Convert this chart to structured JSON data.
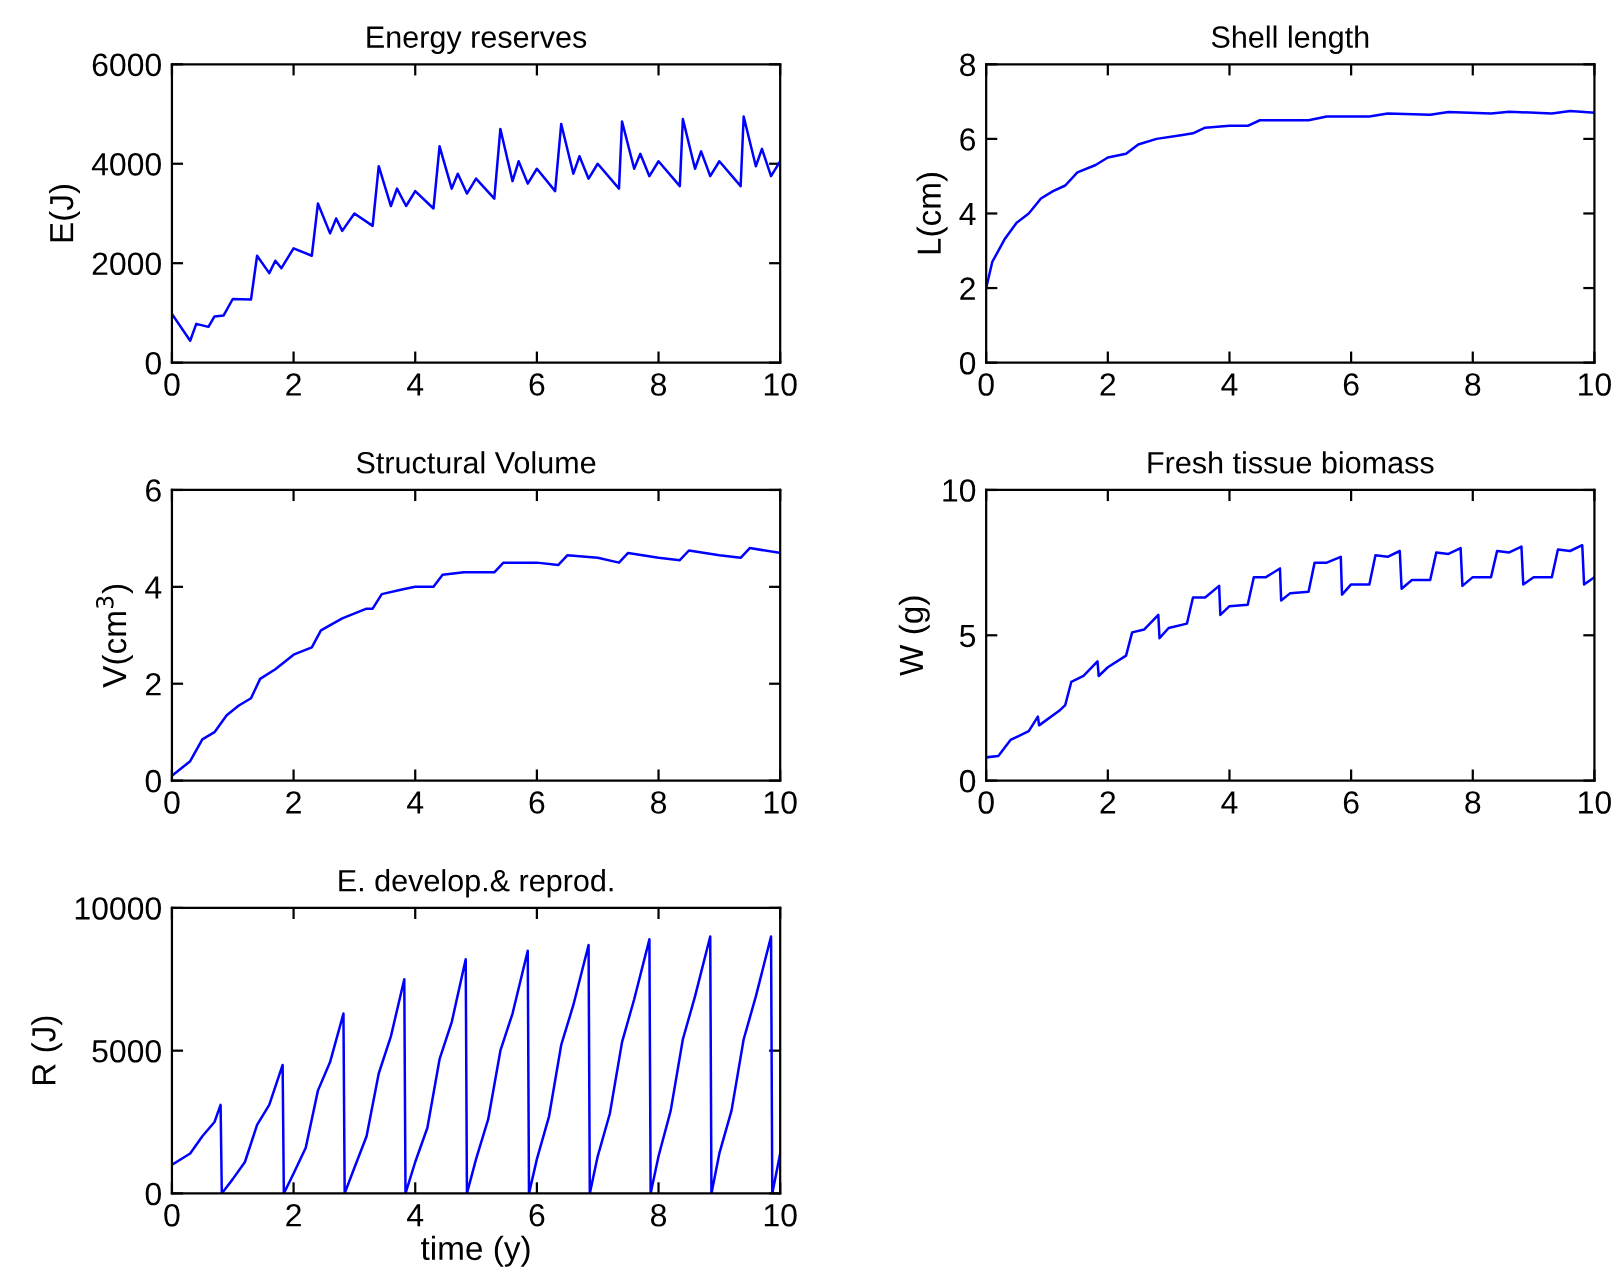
{
  "chart_data": [
    {
      "type": "line",
      "title": "Energy reserves",
      "ylabel": "E(J)",
      "xlim": [
        0,
        10
      ],
      "xticks": [
        0,
        2,
        4,
        6,
        8,
        10
      ],
      "ylim": [
        0,
        6000
      ],
      "yticks": [
        0,
        2000,
        4000,
        6000
      ],
      "grid": false,
      "series": [
        {
          "color": "#0000ff",
          "x": [
            0,
            0.3,
            0.4,
            0.6,
            0.7,
            0.85,
            1.0,
            1.3,
            1.4,
            1.6,
            1.7,
            1.8,
            2.0,
            2.3,
            2.4,
            2.6,
            2.7,
            2.8,
            3.0,
            3.3,
            3.4,
            3.6,
            3.7,
            3.85,
            4.0,
            4.3,
            4.4,
            4.6,
            4.7,
            4.85,
            5.0,
            5.3,
            5.4,
            5.6,
            5.7,
            5.85,
            6.0,
            6.3,
            6.4,
            6.6,
            6.7,
            6.85,
            7.0,
            7.35,
            7.4,
            7.6,
            7.7,
            7.85,
            8.0,
            8.35,
            8.4,
            8.6,
            8.7,
            8.85,
            9.0,
            9.35,
            9.4,
            9.6,
            9.7,
            9.85,
            10.0
          ],
          "values": [
            980,
            440,
            780,
            720,
            930,
            950,
            1280,
            1270,
            2150,
            1800,
            2050,
            1900,
            2300,
            2150,
            3200,
            2600,
            2900,
            2650,
            3000,
            2750,
            3950,
            3150,
            3500,
            3150,
            3450,
            3100,
            4350,
            3500,
            3800,
            3400,
            3700,
            3300,
            4700,
            3650,
            4050,
            3600,
            3900,
            3450,
            4800,
            3800,
            4150,
            3700,
            4000,
            3500,
            4850,
            3900,
            4200,
            3750,
            4050,
            3550,
            4900,
            3900,
            4250,
            3750,
            4050,
            3550,
            4950,
            3950,
            4300,
            3750,
            4050
          ]
        }
      ]
    },
    {
      "type": "line",
      "title": "Shell length",
      "ylabel": "L(cm)",
      "xlim": [
        0,
        10
      ],
      "xticks": [
        0,
        2,
        4,
        6,
        8,
        10
      ],
      "ylim": [
        0,
        8
      ],
      "yticks": [
        0,
        2,
        4,
        6,
        8
      ],
      "grid": false,
      "series": [
        {
          "color": "#0000ff",
          "x": [
            0,
            0.1,
            0.3,
            0.5,
            0.7,
            0.9,
            1.1,
            1.3,
            1.5,
            1.8,
            2.0,
            2.3,
            2.5,
            2.8,
            3.2,
            3.4,
            3.6,
            4.0,
            4.3,
            4.5,
            5.3,
            5.6,
            6.3,
            6.6,
            7.3,
            7.6,
            8.3,
            8.6,
            9.3,
            9.6,
            10
          ],
          "values": [
            2,
            2.7,
            3.3,
            3.75,
            4.0,
            4.4,
            4.6,
            4.75,
            5.1,
            5.3,
            5.5,
            5.6,
            5.85,
            6.0,
            6.1,
            6.15,
            6.3,
            6.35,
            6.35,
            6.5,
            6.5,
            6.6,
            6.6,
            6.68,
            6.65,
            6.72,
            6.68,
            6.73,
            6.68,
            6.75,
            6.7
          ]
        }
      ]
    },
    {
      "type": "line",
      "title": "Structural Volume",
      "ylabel": "V(cm$^{3}$)",
      "xlim": [
        0,
        10
      ],
      "xticks": [
        0,
        2,
        4,
        6,
        8,
        10
      ],
      "ylim": [
        0,
        6
      ],
      "yticks": [
        0,
        2,
        4,
        6
      ],
      "grid": false,
      "series": [
        {
          "color": "#0000ff",
          "x": [
            0,
            0.3,
            0.5,
            0.7,
            0.9,
            1.1,
            1.3,
            1.45,
            1.7,
            2.0,
            2.3,
            2.45,
            2.8,
            3.2,
            3.3,
            3.45,
            3.8,
            4.0,
            4.3,
            4.45,
            4.8,
            5.3,
            5.45,
            6.0,
            6.35,
            6.5,
            7.0,
            7.35,
            7.5,
            8.0,
            8.35,
            8.5,
            9.0,
            9.35,
            9.5,
            10
          ],
          "values": [
            0.1,
            0.4,
            0.85,
            1.0,
            1.35,
            1.55,
            1.7,
            2.1,
            2.3,
            2.6,
            2.75,
            3.1,
            3.35,
            3.55,
            3.55,
            3.85,
            3.95,
            4.0,
            4.0,
            4.25,
            4.3,
            4.3,
            4.5,
            4.5,
            4.45,
            4.65,
            4.6,
            4.5,
            4.7,
            4.6,
            4.55,
            4.75,
            4.65,
            4.6,
            4.8,
            4.7
          ]
        }
      ]
    },
    {
      "type": "line",
      "title": "Fresh tissue biomass",
      "ylabel": "W (g)",
      "xlim": [
        0,
        10
      ],
      "xticks": [
        0,
        2,
        4,
        6,
        8,
        10
      ],
      "ylim": [
        0,
        10
      ],
      "yticks": [
        0,
        5,
        10
      ],
      "grid": false,
      "series": [
        {
          "color": "#0000ff",
          "x": [
            0,
            0.2,
            0.4,
            0.7,
            0.85,
            0.87,
            1.2,
            1.3,
            1.4,
            1.6,
            1.83,
            1.85,
            2.0,
            2.3,
            2.4,
            2.6,
            2.83,
            2.85,
            3.0,
            3.3,
            3.4,
            3.6,
            3.83,
            3.85,
            4.0,
            4.3,
            4.4,
            4.6,
            4.83,
            4.85,
            5.0,
            5.3,
            5.4,
            5.6,
            5.83,
            5.85,
            6.0,
            6.3,
            6.4,
            6.6,
            6.8,
            6.83,
            7.0,
            7.3,
            7.4,
            7.6,
            7.8,
            7.83,
            8.0,
            8.3,
            8.4,
            8.6,
            8.8,
            8.83,
            9.0,
            9.3,
            9.4,
            9.6,
            9.8,
            9.83,
            10.0
          ],
          "values": [
            0.8,
            0.85,
            1.4,
            1.7,
            2.2,
            1.9,
            2.4,
            2.6,
            3.4,
            3.6,
            4.1,
            3.6,
            3.9,
            4.3,
            5.1,
            5.2,
            5.7,
            4.9,
            5.25,
            5.4,
            6.3,
            6.3,
            6.7,
            5.7,
            6.0,
            6.05,
            7.0,
            7.0,
            7.3,
            6.2,
            6.45,
            6.5,
            7.5,
            7.5,
            7.7,
            6.4,
            6.75,
            6.75,
            7.75,
            7.7,
            7.9,
            6.6,
            6.9,
            6.9,
            7.85,
            7.8,
            8.0,
            6.7,
            7.0,
            7.0,
            7.9,
            7.85,
            8.05,
            6.75,
            7.0,
            7.0,
            7.95,
            7.9,
            8.1,
            6.75,
            7.0
          ]
        }
      ]
    },
    {
      "type": "line",
      "title": "E. develop.& reprod.",
      "xlabel": "time (y)",
      "ylabel": "R (J)",
      "xlim": [
        0,
        10
      ],
      "xticks": [
        0,
        2,
        4,
        6,
        8,
        10
      ],
      "ylim": [
        0,
        10000
      ],
      "yticks": [
        0,
        5000,
        10000
      ],
      "grid": false,
      "series": [
        {
          "color": "#0000ff",
          "x": [
            0,
            0.3,
            0.5,
            0.7,
            0.8,
            0.82,
            1.0,
            1.2,
            1.4,
            1.6,
            1.82,
            1.84,
            2.0,
            2.2,
            2.4,
            2.6,
            2.82,
            2.84,
            3.0,
            3.2,
            3.4,
            3.6,
            3.82,
            3.84,
            4.0,
            4.2,
            4.4,
            4.6,
            4.83,
            4.85,
            5.0,
            5.2,
            5.4,
            5.6,
            5.85,
            5.87,
            6.0,
            6.2,
            6.4,
            6.6,
            6.85,
            6.87,
            7.0,
            7.2,
            7.4,
            7.6,
            7.85,
            7.87,
            8.0,
            8.2,
            8.4,
            8.6,
            8.85,
            8.87,
            9.0,
            9.2,
            9.4,
            9.6,
            9.85,
            9.87,
            10.0
          ],
          "values": [
            1000,
            1400,
            2000,
            2500,
            3100,
            0,
            500,
            1100,
            2400,
            3100,
            4500,
            0,
            700,
            1600,
            3600,
            4600,
            6300,
            0,
            900,
            2000,
            4200,
            5500,
            7500,
            0,
            1100,
            2300,
            4700,
            6000,
            8200,
            0,
            1200,
            2600,
            5000,
            6300,
            8500,
            0,
            1200,
            2700,
            5200,
            6600,
            8700,
            0,
            1300,
            2800,
            5300,
            6800,
            8900,
            0,
            1300,
            2900,
            5400,
            6900,
            9000,
            0,
            1400,
            2900,
            5400,
            6900,
            9000,
            0,
            1400
          ]
        }
      ]
    }
  ]
}
